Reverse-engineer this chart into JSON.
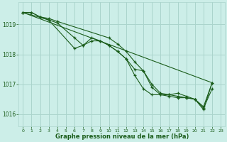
{
  "title": "Graphe pression niveau de la mer (hPa)",
  "background_color": "#cceee8",
  "line_color": "#1a5c1a",
  "grid_color": "#aad4cc",
  "text_color": "#1a5c1a",
  "xlim": [
    -0.5,
    23.5
  ],
  "ylim": [
    1015.6,
    1019.75
  ],
  "yticks": [
    1016,
    1017,
    1018,
    1019
  ],
  "xtick_labels": [
    "0",
    "1",
    "2",
    "3",
    "4",
    "5",
    "6",
    "7",
    "8",
    "9",
    "10",
    "11",
    "12",
    "13",
    "14",
    "15",
    "16",
    "17",
    "18",
    "19",
    "20",
    "21",
    "22",
    "23"
  ],
  "lines": [
    {
      "x": [
        0,
        1,
        2,
        3,
        4,
        10,
        11,
        12,
        13,
        14,
        15,
        16,
        17,
        18,
        19,
        20,
        21,
        22
      ],
      "y": [
        1019.4,
        1019.4,
        1019.25,
        1019.2,
        1019.1,
        1018.55,
        1018.35,
        1018.1,
        1017.75,
        1017.45,
        1017.0,
        1016.7,
        1016.65,
        1016.6,
        1016.55,
        1016.5,
        1016.25,
        1017.05
      ]
    },
    {
      "x": [
        0,
        1,
        2,
        3,
        4,
        6,
        7,
        8,
        9,
        10,
        11,
        12,
        13,
        14,
        15,
        16,
        17,
        18,
        19,
        20,
        21,
        22
      ],
      "y": [
        1019.4,
        1019.4,
        1019.25,
        1019.15,
        1019.05,
        1018.55,
        1018.3,
        1018.45,
        1018.45,
        1018.3,
        1018.1,
        1017.85,
        1017.5,
        1017.45,
        1016.9,
        1016.65,
        1016.6,
        1016.55,
        1016.55,
        1016.5,
        1016.2,
        1016.85
      ]
    },
    {
      "x": [
        0,
        3,
        6,
        7,
        8,
        9,
        10,
        11,
        12,
        13,
        14,
        15,
        16,
        17,
        18,
        19,
        20,
        21,
        22
      ],
      "y": [
        1019.4,
        1019.15,
        1018.2,
        1018.3,
        1018.55,
        1018.45,
        1018.3,
        1018.1,
        1017.85,
        1017.3,
        1016.85,
        1016.65,
        1016.65,
        1016.65,
        1016.7,
        1016.6,
        1016.5,
        1016.15,
        1017.05
      ]
    },
    {
      "x": [
        0,
        22
      ],
      "y": [
        1019.4,
        1017.05
      ],
      "style": "straight"
    }
  ]
}
